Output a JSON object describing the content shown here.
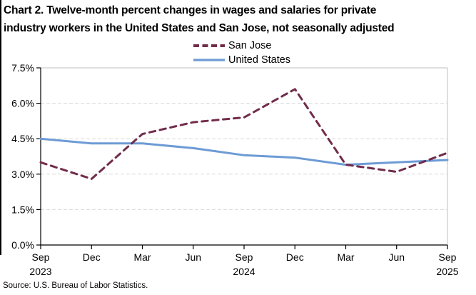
{
  "title": {
    "line1": "Chart 2. Twelve-month percent changes in wages and salaries for private",
    "line2": "industry workers in the United States and San Jose, not seasonally adjusted"
  },
  "legend": {
    "items": [
      {
        "label": "San Jose"
      },
      {
        "label": "United States"
      }
    ]
  },
  "source": "Source: U.S. Bureau of Labor Statistics.",
  "colors": {
    "san_jose": "#722C4B",
    "united_states": "#6D9BD5",
    "gridline": "#d9d9d9",
    "plot_border": "#bfbfbf",
    "axis": "#000000",
    "text": "#000000"
  },
  "chart_data": {
    "type": "line",
    "title": "Chart 2. Twelve-month percent changes in wages and salaries for private industry workers in the United States and San Jose, not seasonally adjusted",
    "categories": [
      "Sep 2023",
      "Dec 2023",
      "Mar 2024",
      "Jun 2024",
      "Sep 2024",
      "Dec 2024",
      "Mar 2025",
      "Jun 2025",
      "Sep 2025"
    ],
    "x_tick_labels": [
      "Sep",
      "Dec",
      "Mar",
      "Jun",
      "Sep",
      "Dec",
      "Mar",
      "Jun",
      "Sep"
    ],
    "x_year_labels": {
      "0": "2023",
      "4": "2024",
      "8": "2025"
    },
    "series": [
      {
        "name": "United States",
        "values": [
          4.5,
          4.3,
          4.3,
          4.1,
          3.8,
          3.7,
          3.4,
          3.5,
          3.6
        ],
        "dashed": false
      },
      {
        "name": "San Jose",
        "values": [
          3.5,
          2.8,
          4.7,
          5.2,
          5.4,
          6.6,
          3.4,
          3.1,
          3.9
        ],
        "dashed": true
      }
    ],
    "ylim": [
      0,
      7.5
    ],
    "y_ticks": [
      0,
      1.5,
      3.0,
      4.5,
      6.0,
      7.5
    ],
    "y_tick_labels": [
      "0.0%",
      "1.5%",
      "3.0%",
      "4.5%",
      "6.0%",
      "7.5%"
    ],
    "grid": "horizontal dashed",
    "legend_position": "top center",
    "source": "Source: U.S. Bureau of Labor Statistics."
  }
}
